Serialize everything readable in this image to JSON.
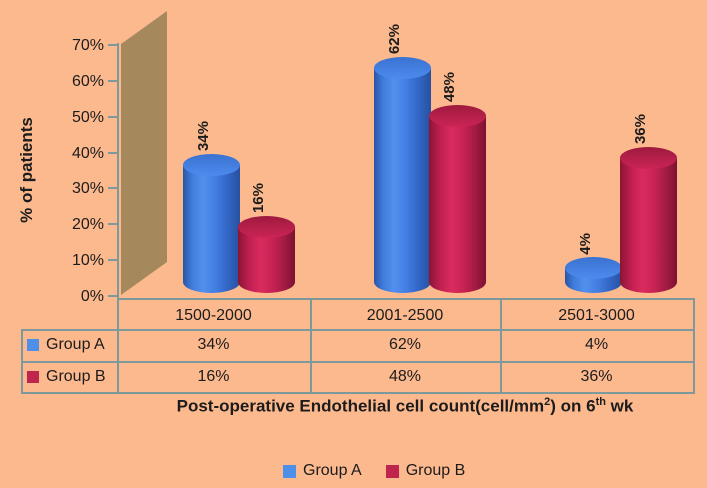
{
  "chart_data": {
    "type": "bar",
    "subtype": "3d-cylinder",
    "title": "",
    "categories": [
      "1500-2000",
      "2001-2500",
      "2501-3000"
    ],
    "series": [
      {
        "name": "Group A",
        "color": "#4E8FE9",
        "values": [
          34,
          62,
          4
        ],
        "labels": [
          "34%",
          "62%",
          "4%"
        ]
      },
      {
        "name": "Group B",
        "color": "#C0254D",
        "values": [
          16,
          48,
          36
        ],
        "labels": [
          "16%",
          "48%",
          "36%"
        ]
      }
    ],
    "xlabel": "Post-operative Endothelial cell count(cell/mm2) on 6th wk",
    "ylabel": "% of patients",
    "ylim": [
      0,
      70
    ],
    "ytick_labels": [
      "0%",
      "10%",
      "20%",
      "30%",
      "40%",
      "50%",
      "60%",
      "70%"
    ],
    "grid": false,
    "legend_position": "bottom",
    "data_table_shown": true
  },
  "y_axis": {
    "title": "% of patients"
  },
  "x_axis_title": {
    "part1": "Post-operative Endothelial cell count(cell/mm",
    "sup1": "2",
    "part2": ") on 6",
    "sup2": "th",
    "part3": " wk"
  },
  "table": {
    "categories": [
      "1500-2000",
      "2001-2500",
      "2501-3000"
    ],
    "rows": [
      {
        "label": "Group A",
        "values": [
          "34%",
          "62%",
          "4%"
        ]
      },
      {
        "label": "Group B",
        "values": [
          "16%",
          "48%",
          "36%"
        ]
      }
    ]
  },
  "legend": {
    "items": [
      {
        "label": "Group A",
        "color": "#4E8FE9"
      },
      {
        "label": "Group B",
        "color": "#C0254D"
      }
    ]
  },
  "colors": {
    "background": "#FCB98E",
    "wall": "#A5895C",
    "line": "#7E999C",
    "series_a": "#4E8FE9",
    "series_b": "#C0254D",
    "text": "#1c1c1c"
  }
}
